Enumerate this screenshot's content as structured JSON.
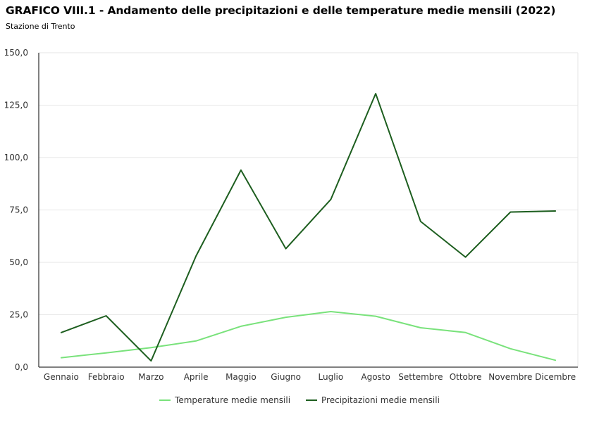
{
  "header": {
    "title": "GRAFICO VIII.1 - Andamento delle precipitazioni e delle temperature medie mensili (2022)",
    "subtitle": "Stazione di Trento"
  },
  "chart_data": {
    "type": "line",
    "title": "GRAFICO VIII.1 - Andamento delle precipitazioni e delle temperature medie mensili (2022)",
    "subtitle": "Stazione di Trento",
    "xlabel": "",
    "ylabel": "",
    "ylim": [
      0,
      150
    ],
    "yticks": [
      "0,0",
      "25,0",
      "50,0",
      "75,0",
      "100,0",
      "125,0",
      "150,0"
    ],
    "ytick_values": [
      0,
      25,
      50,
      75,
      100,
      125,
      150
    ],
    "grid": true,
    "legend_position": "bottom-center",
    "categories": [
      "Gennaio",
      "Febbraio",
      "Marzo",
      "Aprile",
      "Maggio",
      "Giugno",
      "Luglio",
      "Agosto",
      "Settembre",
      "Ottobre",
      "Novembre",
      "Dicembre"
    ],
    "series": [
      {
        "name": "Temperature medie mensili",
        "color": "#79e27b",
        "values": [
          4.5,
          6.8,
          9.3,
          12.5,
          19.5,
          23.8,
          26.5,
          24.3,
          18.8,
          16.5,
          8.8,
          3.3
        ]
      },
      {
        "name": "Precipitazioni medie mensili",
        "color": "#1d5e1f",
        "values": [
          16.5,
          24.5,
          3.0,
          53.0,
          94.0,
          56.5,
          80.0,
          130.5,
          69.5,
          52.5,
          74.0,
          74.5
        ]
      }
    ]
  }
}
